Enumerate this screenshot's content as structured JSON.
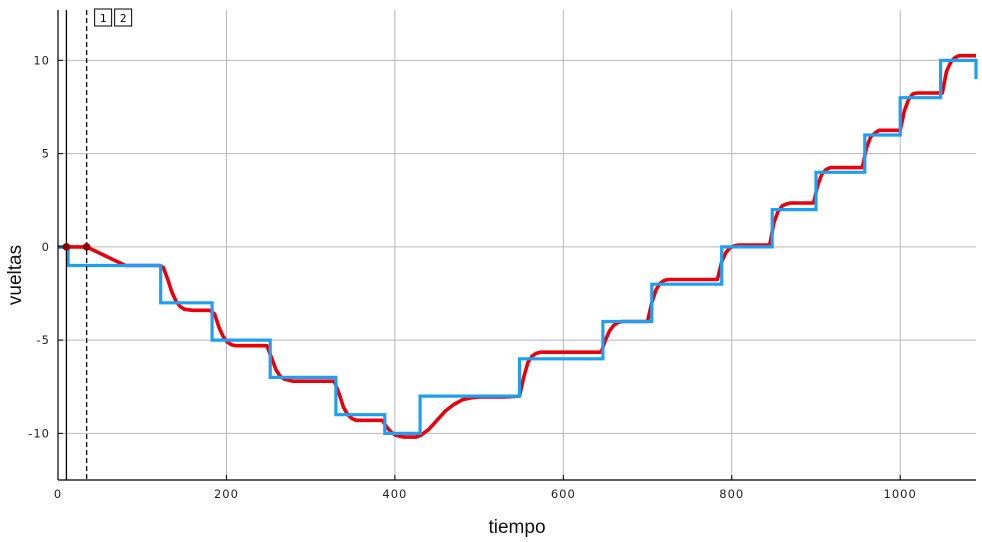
{
  "chart_data": {
    "type": "line",
    "title": "",
    "xlabel": "tiempo",
    "ylabel": "vueltas",
    "xlim": [
      0,
      1090
    ],
    "ylim": [
      -12.5,
      12.7
    ],
    "x_ticks": [
      0,
      200,
      400,
      600,
      800,
      1000
    ],
    "y_ticks": [
      -10,
      -5,
      0,
      5,
      10
    ],
    "x_tick_labels": [
      "0",
      "200",
      "400",
      "600",
      "800",
      "1000"
    ],
    "y_tick_labels": [
      "-10",
      "-5",
      "0",
      "5",
      "10"
    ],
    "grid": true,
    "cursors": [
      {
        "label": "1",
        "x": 10,
        "style": "solid"
      },
      {
        "label": "2",
        "x": 34,
        "style": "dashed"
      }
    ],
    "cursor_points": [
      {
        "x": 10,
        "y": 0
      },
      {
        "x": 34,
        "y": 0
      }
    ],
    "series": [
      {
        "color": "#e8000b",
        "style": "smooth-step-response",
        "x": [
          0,
          34,
          80,
          120,
          125,
          130,
          135,
          140,
          145,
          150,
          160,
          180,
          186,
          191,
          196,
          201,
          206,
          211,
          222,
          248,
          254,
          259,
          264,
          269,
          274,
          279,
          290,
          328,
          334,
          339,
          344,
          349,
          354,
          359,
          370,
          385,
          391,
          396,
          401,
          406,
          411,
          416,
          425,
          431,
          440,
          450,
          460,
          470,
          480,
          490,
          500,
          510,
          520,
          530,
          548,
          553,
          558,
          563,
          568,
          573,
          578,
          590,
          645,
          650,
          655,
          660,
          665,
          670,
          675,
          690,
          700,
          705,
          710,
          715,
          720,
          725,
          730,
          745,
          783,
          788,
          793,
          798,
          803,
          808,
          813,
          830,
          845,
          850,
          855,
          860,
          865,
          870,
          875,
          890,
          897,
          902,
          907,
          912,
          917,
          922,
          927,
          945,
          955,
          960,
          965,
          970,
          975,
          980,
          985,
          995,
          1000,
          1005,
          1010,
          1015,
          1020,
          1025,
          1030,
          1045,
          1050,
          1055,
          1060,
          1065,
          1070,
          1075,
          1080,
          1090
        ],
        "y": [
          0,
          0,
          -1.0,
          -1.0,
          -1.1,
          -1.7,
          -2.4,
          -2.9,
          -3.2,
          -3.35,
          -3.4,
          -3.4,
          -3.6,
          -4.3,
          -4.8,
          -5.1,
          -5.25,
          -5.3,
          -5.3,
          -5.3,
          -6.0,
          -6.6,
          -6.95,
          -7.1,
          -7.15,
          -7.2,
          -7.2,
          -7.2,
          -7.9,
          -8.6,
          -9.0,
          -9.2,
          -9.3,
          -9.3,
          -9.3,
          -9.3,
          -9.7,
          -9.95,
          -10.1,
          -10.15,
          -10.2,
          -10.2,
          -10.2,
          -10.1,
          -9.8,
          -9.3,
          -8.8,
          -8.45,
          -8.2,
          -8.1,
          -8.05,
          -8.05,
          -8.05,
          -8.05,
          -8.0,
          -7.0,
          -6.2,
          -5.85,
          -5.7,
          -5.65,
          -5.65,
          -5.65,
          -5.65,
          -5.0,
          -4.5,
          -4.2,
          -4.05,
          -4.0,
          -4.0,
          -4.0,
          -4.0,
          -3.0,
          -2.3,
          -1.95,
          -1.8,
          -1.75,
          -1.75,
          -1.75,
          -1.75,
          -0.8,
          -0.3,
          -0.05,
          0.05,
          0.1,
          0.1,
          0.1,
          0.1,
          1.3,
          1.9,
          2.2,
          2.3,
          2.35,
          2.35,
          2.35,
          2.35,
          3.3,
          3.9,
          4.15,
          4.25,
          4.25,
          4.25,
          4.25,
          4.25,
          5.3,
          5.9,
          6.1,
          6.25,
          6.25,
          6.25,
          6.25,
          6.25,
          7.3,
          7.9,
          8.2,
          8.25,
          8.25,
          8.25,
          8.25,
          8.25,
          9.4,
          9.9,
          10.15,
          10.25,
          10.25,
          10.25,
          10.25
        ]
      },
      {
        "color": "#1e9ff2",
        "style": "step",
        "x": [
          0,
          12,
          12,
          122,
          122,
          183,
          183,
          252,
          252,
          330,
          330,
          388,
          388,
          430,
          430,
          548,
          548,
          647,
          647,
          705,
          705,
          788,
          788,
          848,
          848,
          900,
          900,
          958,
          958,
          1000,
          1000,
          1048,
          1048,
          1090,
          1090
        ],
        "y": [
          0,
          0,
          -1,
          -1,
          -3,
          -3,
          -5,
          -5,
          -7,
          -7,
          -9,
          -9,
          -10,
          -10,
          -8,
          -8,
          -6,
          -6,
          -4,
          -4,
          -2,
          -2,
          0,
          0,
          2,
          2,
          4,
          4,
          6,
          6,
          8,
          8,
          10,
          10,
          9
        ]
      }
    ]
  },
  "colors": {
    "grid": "#b8b8b8",
    "axis": "#000000",
    "cursor_point": "#8b0000"
  }
}
